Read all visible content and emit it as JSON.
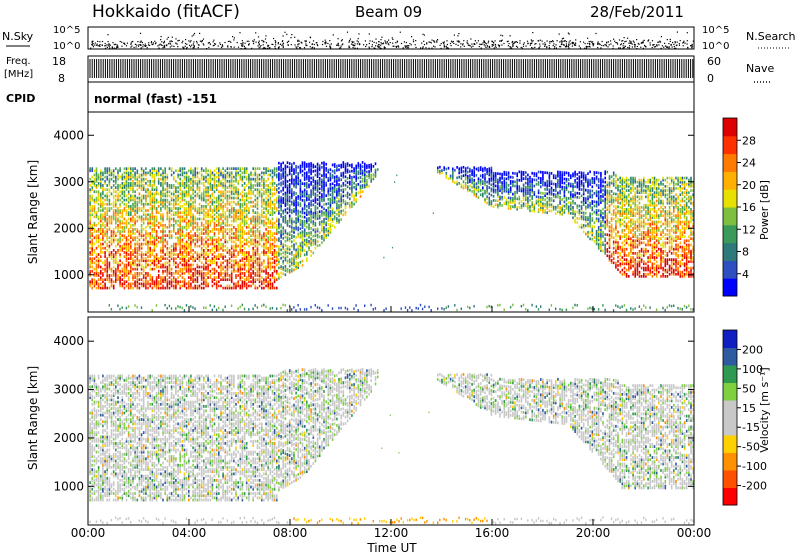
{
  "header": {
    "station": "Hokkaido (fitACF)",
    "beam": "Beam 09",
    "date": "28/Feb/2011"
  },
  "top_strip": {
    "left_label": "N.Sky",
    "right_label": "N.Search",
    "left_ticks": [
      "10^5",
      "10^0"
    ],
    "right_ticks": [
      "10^5",
      "10^0"
    ],
    "freq_label_1": "Freq.",
    "freq_label_2": "[MHz]",
    "freq_ticks": [
      "18",
      "8"
    ],
    "nave_label": "Nave",
    "nave_ticks": [
      "60",
      "0"
    ],
    "cpid_label": "CPID",
    "cpid_text": "normal (fast) -151"
  },
  "chart_data": [
    {
      "type": "heatmap",
      "name": "power",
      "ylabel": "Slant Range [km]",
      "xlabel": "",
      "ylim": [
        200,
        4500
      ],
      "yticks": [
        "1000",
        "2000",
        "3000",
        "4000"
      ],
      "colorbar": {
        "label": "Power [dB]",
        "range": [
          0,
          32
        ],
        "ticks": [
          "28",
          "24",
          "20",
          "16",
          "12",
          "8",
          "4"
        ],
        "colors": [
          "#0000ff",
          "#2d4fbf",
          "#2e7a7a",
          "#3a9a5a",
          "#7fbf3f",
          "#e8e000",
          "#ffb000",
          "#ff7a00",
          "#ff3000",
          "#dd0000"
        ]
      }
    },
    {
      "type": "heatmap",
      "name": "velocity",
      "ylabel": "Slant Range [km]",
      "xlabel": "Time UT",
      "ylim": [
        200,
        4500
      ],
      "yticks": [
        "1000",
        "2000",
        "3000",
        "4000"
      ],
      "xticks": [
        "00:00",
        "04:00",
        "08:00",
        "12:00",
        "16:00",
        "20:00",
        "00:00"
      ],
      "colorbar": {
        "label": "Velocity [m s⁻¹]",
        "range": [
          -250,
          250
        ],
        "ticks": [
          "200",
          "100",
          "50",
          "15",
          "-15",
          "-50",
          "-100",
          "-200"
        ],
        "colors": [
          "#ff0000",
          "#ff5000",
          "#ff9000",
          "#ffd000",
          "#c8c8c8",
          "#c8c8c8",
          "#7fd040",
          "#2e9a50",
          "#2e5aa0",
          "#1020c0"
        ]
      }
    }
  ]
}
